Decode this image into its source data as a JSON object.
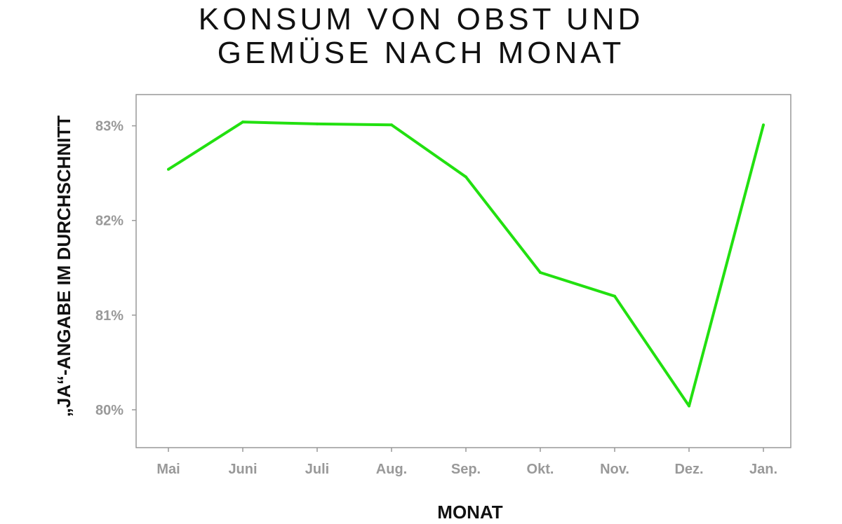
{
  "chart_data": {
    "type": "line",
    "title_line1": "KONSUM VON OBST UND",
    "title_line2": "GEMÜSE NACH MONAT",
    "xlabel": "MONAT",
    "ylabel": "„JA“-ANGABE IM DURCHSCHNITT",
    "categories": [
      "Mai",
      "Juni",
      "Juli",
      "Aug.",
      "Sep.",
      "Okt.",
      "Nov.",
      "Dez.",
      "Jan."
    ],
    "values": [
      82.54,
      83.04,
      83.02,
      83.01,
      82.46,
      81.45,
      81.2,
      80.04,
      83.01
    ],
    "yticks": [
      80,
      81,
      82,
      83
    ],
    "ytick_labels": [
      "80%",
      "81%",
      "82%",
      "83%"
    ],
    "ylim": [
      79.6,
      83.33
    ],
    "grid": false,
    "line_color": "#22e010",
    "axis_color": "#999999"
  }
}
